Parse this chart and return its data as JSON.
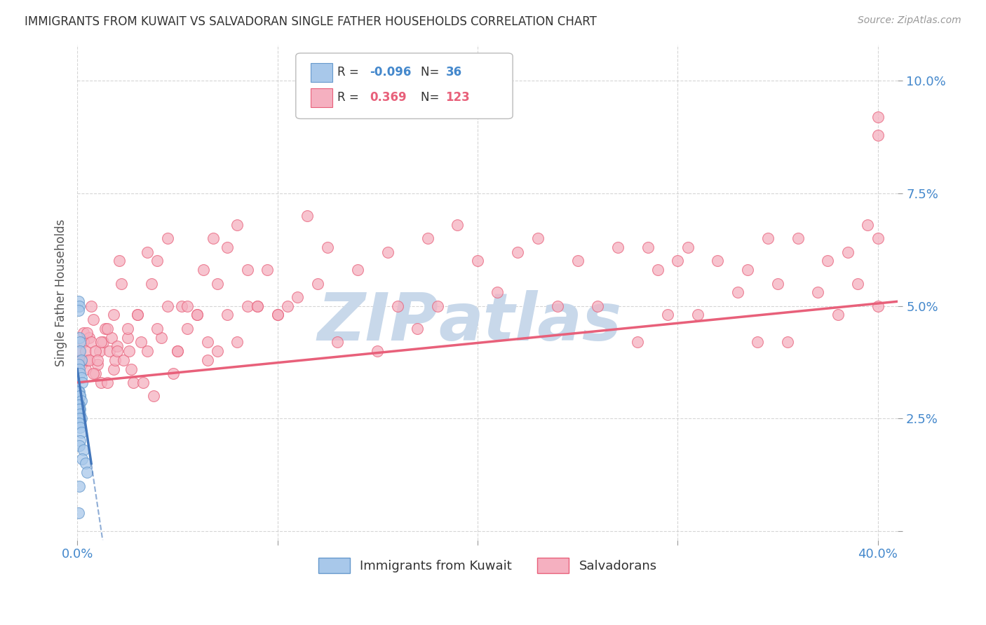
{
  "title": "IMMIGRANTS FROM KUWAIT VS SALVADORAN SINGLE FATHER HOUSEHOLDS CORRELATION CHART",
  "source": "Source: ZipAtlas.com",
  "xlim": [
    0.0,
    0.41
  ],
  "ylim": [
    -0.002,
    0.108
  ],
  "ylabel": "Single Father Households",
  "color_blue_fill": "#a8c8ea",
  "color_pink_fill": "#f5b0c0",
  "color_blue_edge": "#6699cc",
  "color_pink_edge": "#e8607a",
  "color_blue_line": "#4477bb",
  "color_pink_line": "#e8607a",
  "color_blue_text": "#4488cc",
  "color_pink_text": "#e8607a",
  "watermark_color": "#c8d8ea",
  "background_color": "#ffffff",
  "grid_color": "#cccccc",
  "blue_x": [
    0.0005,
    0.001,
    0.0008,
    0.001,
    0.0012,
    0.0015,
    0.002,
    0.0008,
    0.001,
    0.0015,
    0.002,
    0.0025,
    0.001,
    0.0008,
    0.0012,
    0.0015,
    0.002,
    0.001,
    0.0008,
    0.0012,
    0.001,
    0.0015,
    0.002,
    0.001,
    0.0008,
    0.001,
    0.0015,
    0.002,
    0.0012,
    0.001,
    0.003,
    0.0025,
    0.004,
    0.005,
    0.001,
    0.0005
  ],
  "blue_y": [
    0.051,
    0.05,
    0.049,
    0.043,
    0.042,
    0.04,
    0.038,
    0.037,
    0.036,
    0.035,
    0.034,
    0.033,
    0.031,
    0.031,
    0.03,
    0.03,
    0.029,
    0.028,
    0.028,
    0.027,
    0.027,
    0.026,
    0.025,
    0.025,
    0.024,
    0.024,
    0.023,
    0.022,
    0.02,
    0.019,
    0.018,
    0.016,
    0.015,
    0.013,
    0.01,
    0.004
  ],
  "pink_x": [
    0.001,
    0.0015,
    0.002,
    0.003,
    0.004,
    0.005,
    0.006,
    0.007,
    0.008,
    0.009,
    0.01,
    0.011,
    0.012,
    0.013,
    0.014,
    0.015,
    0.016,
    0.017,
    0.018,
    0.019,
    0.02,
    0.021,
    0.022,
    0.023,
    0.025,
    0.026,
    0.027,
    0.028,
    0.03,
    0.032,
    0.033,
    0.035,
    0.037,
    0.038,
    0.04,
    0.042,
    0.045,
    0.048,
    0.05,
    0.052,
    0.055,
    0.06,
    0.063,
    0.065,
    0.068,
    0.07,
    0.075,
    0.08,
    0.085,
    0.09,
    0.095,
    0.1,
    0.105,
    0.11,
    0.115,
    0.12,
    0.125,
    0.13,
    0.14,
    0.15,
    0.155,
    0.16,
    0.17,
    0.175,
    0.18,
    0.19,
    0.2,
    0.21,
    0.22,
    0.23,
    0.24,
    0.25,
    0.26,
    0.27,
    0.28,
    0.285,
    0.29,
    0.295,
    0.3,
    0.305,
    0.31,
    0.32,
    0.33,
    0.335,
    0.34,
    0.345,
    0.35,
    0.355,
    0.36,
    0.37,
    0.375,
    0.38,
    0.385,
    0.39,
    0.395,
    0.4,
    0.4,
    0.4,
    0.4,
    0.002,
    0.003,
    0.004,
    0.005,
    0.006,
    0.007,
    0.008,
    0.009,
    0.01,
    0.012,
    0.015,
    0.018,
    0.02,
    0.025,
    0.03,
    0.035,
    0.04,
    0.045,
    0.05,
    0.055,
    0.06,
    0.065,
    0.07,
    0.075,
    0.08,
    0.085,
    0.09,
    0.1
  ],
  "pink_y": [
    0.04,
    0.038,
    0.037,
    0.044,
    0.036,
    0.038,
    0.043,
    0.05,
    0.047,
    0.035,
    0.037,
    0.04,
    0.033,
    0.042,
    0.045,
    0.033,
    0.04,
    0.043,
    0.036,
    0.038,
    0.041,
    0.06,
    0.055,
    0.038,
    0.043,
    0.04,
    0.036,
    0.033,
    0.048,
    0.042,
    0.033,
    0.062,
    0.055,
    0.03,
    0.06,
    0.043,
    0.065,
    0.035,
    0.04,
    0.05,
    0.045,
    0.048,
    0.058,
    0.038,
    0.065,
    0.04,
    0.063,
    0.068,
    0.05,
    0.05,
    0.058,
    0.048,
    0.05,
    0.052,
    0.07,
    0.055,
    0.063,
    0.042,
    0.058,
    0.04,
    0.062,
    0.05,
    0.045,
    0.065,
    0.05,
    0.068,
    0.06,
    0.053,
    0.062,
    0.065,
    0.05,
    0.06,
    0.05,
    0.063,
    0.042,
    0.063,
    0.058,
    0.048,
    0.06,
    0.063,
    0.048,
    0.06,
    0.053,
    0.058,
    0.042,
    0.065,
    0.055,
    0.042,
    0.065,
    0.053,
    0.06,
    0.048,
    0.062,
    0.055,
    0.068,
    0.05,
    0.065,
    0.088,
    0.092,
    0.038,
    0.042,
    0.04,
    0.044,
    0.038,
    0.042,
    0.035,
    0.04,
    0.038,
    0.042,
    0.045,
    0.048,
    0.04,
    0.045,
    0.048,
    0.04,
    0.045,
    0.05,
    0.04,
    0.05,
    0.048,
    0.042,
    0.055,
    0.048,
    0.042,
    0.058,
    0.05,
    0.048
  ]
}
